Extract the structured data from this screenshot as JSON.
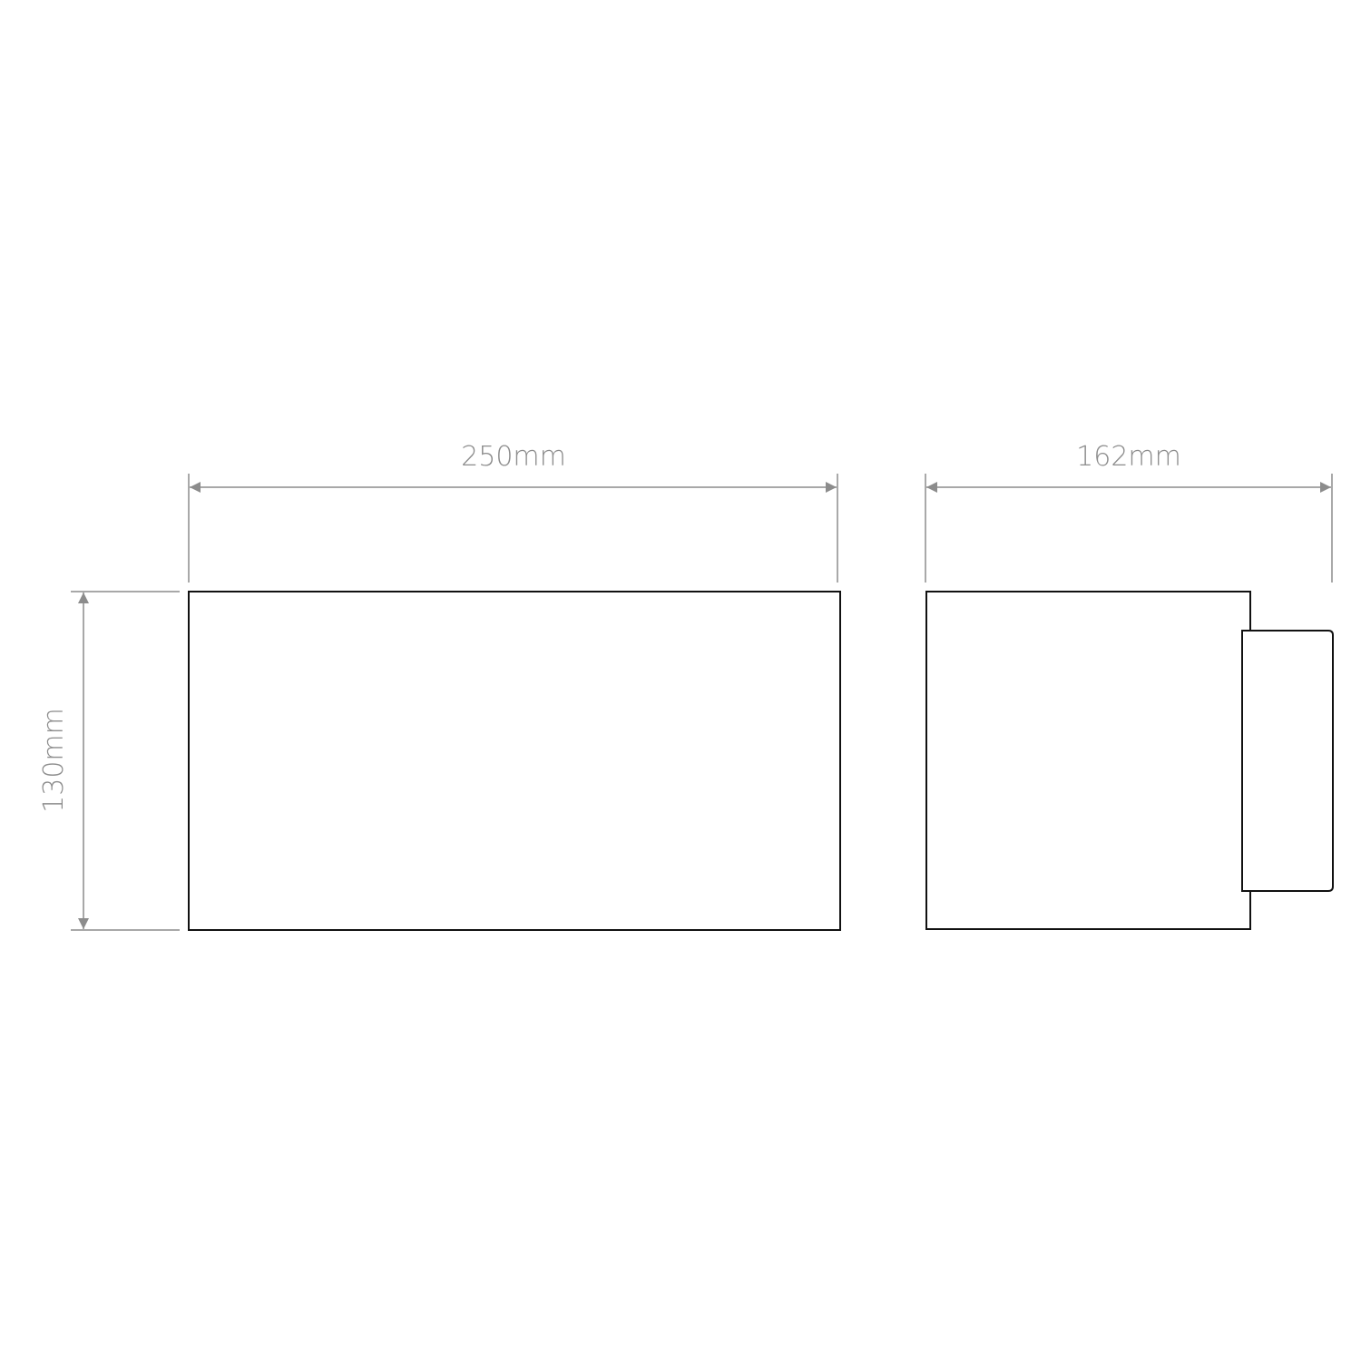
{
  "dimensions": {
    "width": "250mm",
    "depth": "162mm",
    "height": "130mm"
  },
  "colors": {
    "outline": "#111111",
    "dimension": "#8c8c8c"
  }
}
